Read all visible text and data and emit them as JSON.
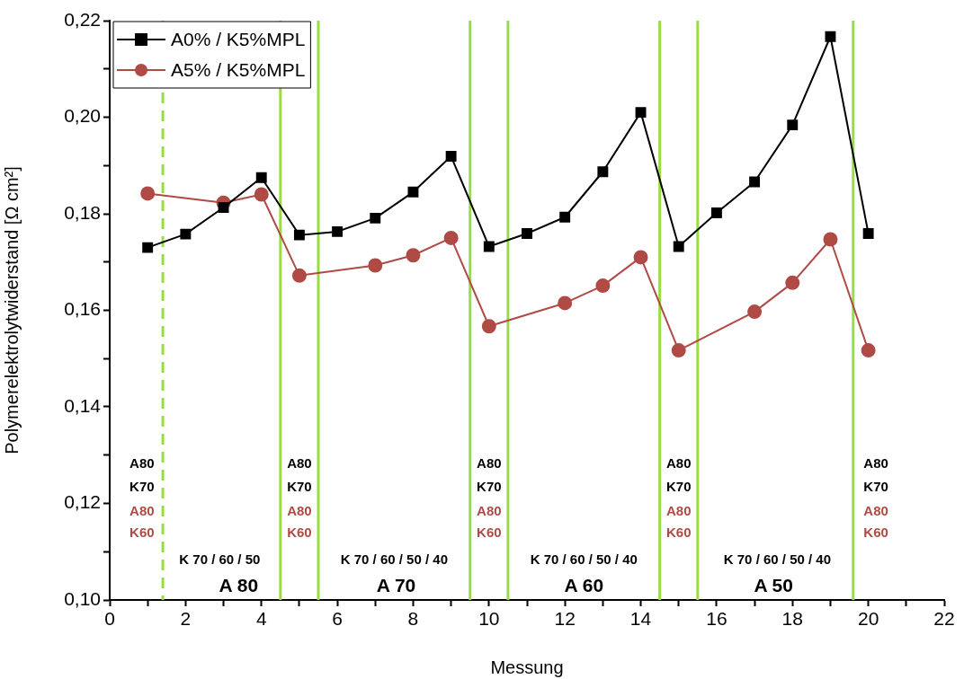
{
  "chart_data": {
    "type": "line",
    "xlabel": "Messung",
    "ylabel": "Polymerelektrolytwiderstand [Ω cm²]",
    "x": [
      1,
      2,
      3,
      4,
      5,
      6,
      7,
      8,
      9,
      10,
      11,
      12,
      13,
      14,
      15,
      16,
      17,
      18,
      19,
      20
    ],
    "series": [
      {
        "name": "A0% / K5%MPL",
        "color": "#000000",
        "marker": "square",
        "values": [
          0.173,
          0.1758,
          0.1813,
          0.1875,
          0.1756,
          0.1763,
          0.1791,
          0.1845,
          0.1919,
          0.1732,
          0.1759,
          0.1793,
          0.1887,
          0.201,
          0.1732,
          0.1802,
          0.1866,
          0.1984,
          0.2167,
          0.1759
        ]
      },
      {
        "name": "A5% / K5%MPL",
        "color": "#b04a45",
        "marker": "circle",
        "values": [
          0.1842,
          null,
          0.1823,
          0.184,
          0.1672,
          null,
          0.1693,
          0.1714,
          0.175,
          0.1567,
          null,
          0.1615,
          0.1651,
          0.171,
          0.1517,
          null,
          0.1597,
          0.1657,
          0.1747,
          0.1517
        ]
      }
    ],
    "xlim": [
      0,
      22
    ],
    "xticks": [
      0,
      {
        "value": 1,
        "label": null
      },
      2,
      {
        "value": 3,
        "label": null
      },
      4,
      {
        "value": 5,
        "label": null
      },
      6,
      {
        "value": 7,
        "label": null
      },
      8,
      {
        "value": 9,
        "label": null
      },
      10,
      {
        "value": 11,
        "label": null
      },
      12,
      {
        "value": 13,
        "label": null
      },
      14,
      {
        "value": 15,
        "label": null
      },
      16,
      {
        "value": 17,
        "label": null
      },
      18,
      {
        "value": 19,
        "label": null
      },
      20,
      {
        "value": 21,
        "label": null
      },
      22
    ],
    "ylim": [
      0.1,
      0.22
    ],
    "yticks": [
      {
        "value": 0.1,
        "label": "0,10"
      },
      {
        "value": 0.11,
        "label": null
      },
      {
        "value": 0.12,
        "label": "0,12"
      },
      {
        "value": 0.13,
        "label": null
      },
      {
        "value": 0.14,
        "label": "0,14"
      },
      {
        "value": 0.15,
        "label": null
      },
      {
        "value": 0.16,
        "label": "0,16"
      },
      {
        "value": 0.17,
        "label": null
      },
      {
        "value": 0.18,
        "label": "0,18"
      },
      {
        "value": 0.19,
        "label": null
      },
      {
        "value": 0.2,
        "label": "0,20"
      },
      {
        "value": 0.21,
        "label": null
      },
      {
        "value": 0.22,
        "label": "0,22"
      }
    ],
    "grid": false,
    "legend": "top left",
    "ref_lines": [
      {
        "axis": "x",
        "value": 1.4,
        "color": "#99dd44",
        "line_style": "dashed"
      },
      {
        "axis": "x",
        "value": 4.5,
        "color": "#99dd44",
        "line_style": "solid"
      },
      {
        "axis": "x",
        "value": 5.5,
        "color": "#99dd44",
        "line_style": "solid"
      },
      {
        "axis": "x",
        "value": 9.5,
        "color": "#99dd44",
        "line_style": "solid"
      },
      {
        "axis": "x",
        "value": 10.5,
        "color": "#99dd44",
        "line_style": "solid"
      },
      {
        "axis": "x",
        "value": 14.5,
        "color": "#99dd44",
        "line_style": "solid"
      },
      {
        "axis": "x",
        "value": 15.5,
        "color": "#99dd44",
        "line_style": "solid"
      },
      {
        "axis": "x",
        "value": 19.6,
        "color": "#99dd44",
        "line_style": "solid"
      }
    ],
    "annotations": [
      "A80",
      "K70",
      "A80",
      "K60",
      "A80",
      "K70",
      "A80",
      "K60",
      "A80",
      "K70",
      "A80",
      "K60",
      "A80",
      "K70",
      "A80",
      "K60",
      "A80",
      "K70",
      "A80",
      "K60",
      "K 70 / 60 / 50",
      "A 80",
      "K 70 / 60 / 50 / 40",
      "A 70",
      "K 70 / 60 / 50 / 40",
      "A 60",
      "K 70 / 60 / 50 / 40",
      "A 50"
    ]
  }
}
